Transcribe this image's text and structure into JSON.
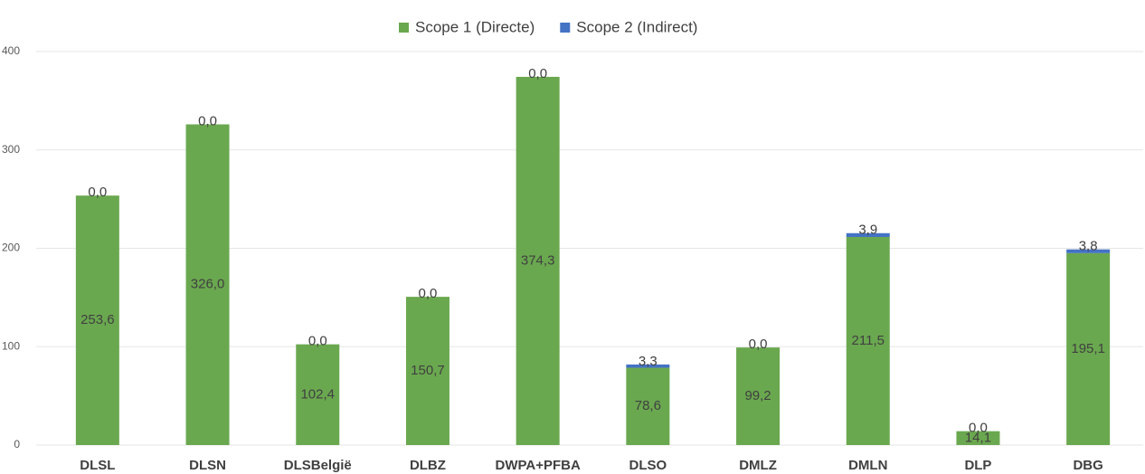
{
  "chart_data": {
    "type": "stacked_bar",
    "categories": [
      "DLSL",
      "DLSN",
      "DLSBelgië",
      "DLBZ",
      "DWPA+PFBA",
      "DLSO",
      "DMLZ",
      "DMLN",
      "DLP",
      "DBG"
    ],
    "series": [
      {
        "name": "Scope 1 (Directe)",
        "color": "#6aa84f",
        "values": [
          253.6,
          326.0,
          102.4,
          150.7,
          374.3,
          78.6,
          99.2,
          211.5,
          14.1,
          195.1
        ],
        "value_labels": [
          "253,6",
          "326,0",
          "102,4",
          "150,7",
          "374,3",
          "78,6",
          "99,2",
          "211,5",
          "14,1",
          "195,1"
        ]
      },
      {
        "name": "Scope 2 (Indirect)",
        "color": "#4472c4",
        "values": [
          0,
          0,
          0,
          0,
          0,
          3.3,
          0,
          3.9,
          0,
          3.8
        ],
        "value_labels": [
          "0,0",
          "0,0",
          "0,0",
          "0,0",
          "0,0",
          "3,3",
          "0,0",
          "3,9",
          "0,0",
          "3,8"
        ]
      }
    ],
    "ylim": [
      0,
      400
    ],
    "yticks": [
      0,
      100,
      200,
      300,
      400
    ],
    "grid": true,
    "legend": "top"
  }
}
